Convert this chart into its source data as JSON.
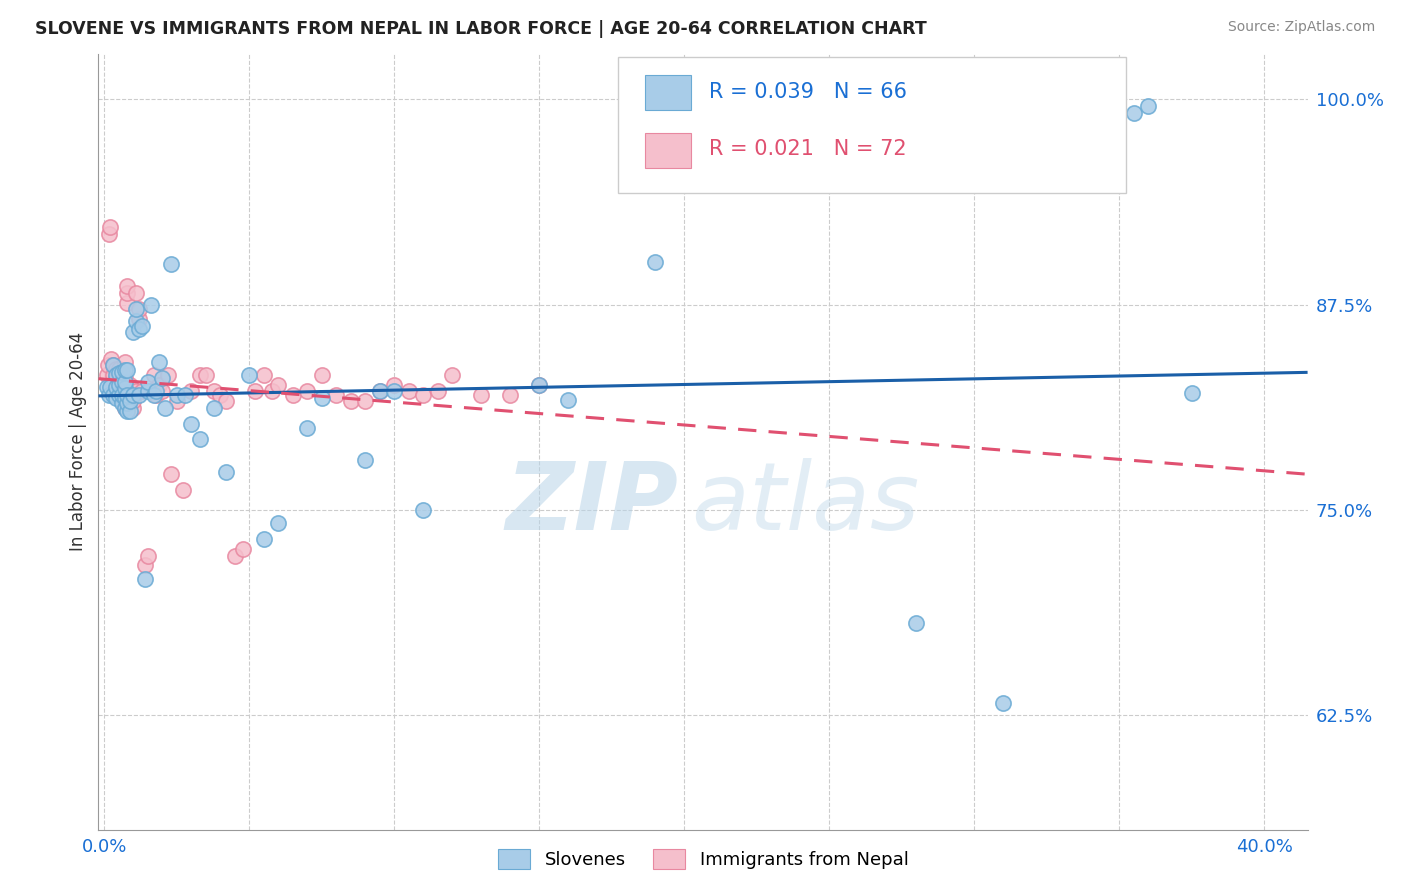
{
  "title": "SLOVENE VS IMMIGRANTS FROM NEPAL IN LABOR FORCE | AGE 20-64 CORRELATION CHART",
  "source": "Source: ZipAtlas.com",
  "ylabel": "In Labor Force | Age 20-64",
  "xmin": -0.002,
  "xmax": 0.415,
  "ymin": 0.555,
  "ymax": 1.028,
  "yticks": [
    0.625,
    0.75,
    0.875,
    1.0
  ],
  "ytick_labels": [
    "62.5%",
    "75.0%",
    "87.5%",
    "100.0%"
  ],
  "xticks": [
    0.0,
    0.05,
    0.1,
    0.15,
    0.2,
    0.25,
    0.3,
    0.35,
    0.4
  ],
  "xtick_labels": [
    "0.0%",
    "",
    "",
    "",
    "",
    "",
    "",
    "",
    "40.0%"
  ],
  "legend_blue_label": "Slovenes",
  "legend_pink_label": "Immigrants from Nepal",
  "R_blue": 0.039,
  "N_blue": 66,
  "R_pink": 0.021,
  "N_pink": 72,
  "blue_color": "#a8cce8",
  "blue_edge_color": "#6aaad4",
  "pink_color": "#f5bfcc",
  "pink_edge_color": "#e888a0",
  "trendline_blue_color": "#1a5fa8",
  "trendline_pink_color": "#e05070",
  "blue_scatter_x": [
    0.0008,
    0.0015,
    0.002,
    0.003,
    0.003,
    0.004,
    0.004,
    0.004,
    0.005,
    0.005,
    0.005,
    0.006,
    0.006,
    0.006,
    0.006,
    0.007,
    0.007,
    0.007,
    0.007,
    0.007,
    0.008,
    0.008,
    0.008,
    0.008,
    0.009,
    0.009,
    0.01,
    0.01,
    0.011,
    0.011,
    0.012,
    0.012,
    0.013,
    0.014,
    0.015,
    0.015,
    0.016,
    0.017,
    0.018,
    0.019,
    0.02,
    0.021,
    0.023,
    0.025,
    0.028,
    0.03,
    0.033,
    0.038,
    0.042,
    0.05,
    0.055,
    0.06,
    0.07,
    0.075,
    0.09,
    0.095,
    0.1,
    0.11,
    0.15,
    0.16,
    0.19,
    0.28,
    0.31,
    0.355,
    0.36,
    0.375
  ],
  "blue_scatter_y": [
    0.825,
    0.82,
    0.825,
    0.82,
    0.838,
    0.818,
    0.825,
    0.832,
    0.82,
    0.826,
    0.833,
    0.815,
    0.82,
    0.828,
    0.834,
    0.812,
    0.818,
    0.824,
    0.828,
    0.835,
    0.81,
    0.815,
    0.82,
    0.835,
    0.81,
    0.816,
    0.82,
    0.858,
    0.865,
    0.872,
    0.82,
    0.86,
    0.862,
    0.708,
    0.822,
    0.828,
    0.875,
    0.82,
    0.822,
    0.84,
    0.83,
    0.812,
    0.9,
    0.82,
    0.82,
    0.802,
    0.793,
    0.812,
    0.773,
    0.832,
    0.732,
    0.742,
    0.8,
    0.818,
    0.78,
    0.822,
    0.822,
    0.75,
    0.826,
    0.817,
    0.901,
    0.681,
    0.632,
    0.992,
    0.996,
    0.821
  ],
  "pink_scatter_x": [
    0.0008,
    0.0012,
    0.0018,
    0.002,
    0.0025,
    0.003,
    0.003,
    0.003,
    0.004,
    0.004,
    0.004,
    0.005,
    0.005,
    0.005,
    0.005,
    0.006,
    0.006,
    0.006,
    0.007,
    0.007,
    0.007,
    0.007,
    0.008,
    0.008,
    0.008,
    0.009,
    0.009,
    0.01,
    0.01,
    0.011,
    0.011,
    0.012,
    0.012,
    0.013,
    0.014,
    0.015,
    0.016,
    0.017,
    0.018,
    0.019,
    0.02,
    0.022,
    0.023,
    0.025,
    0.027,
    0.03,
    0.033,
    0.035,
    0.038,
    0.04,
    0.042,
    0.045,
    0.048,
    0.052,
    0.055,
    0.058,
    0.06,
    0.065,
    0.07,
    0.075,
    0.08,
    0.085,
    0.09,
    0.095,
    0.1,
    0.105,
    0.11,
    0.115,
    0.12,
    0.13,
    0.14,
    0.15
  ],
  "pink_scatter_y": [
    0.832,
    0.838,
    0.918,
    0.922,
    0.842,
    0.826,
    0.832,
    0.838,
    0.822,
    0.83,
    0.836,
    0.82,
    0.826,
    0.832,
    0.836,
    0.817,
    0.822,
    0.83,
    0.812,
    0.82,
    0.83,
    0.84,
    0.876,
    0.882,
    0.886,
    0.822,
    0.826,
    0.812,
    0.816,
    0.822,
    0.882,
    0.866,
    0.872,
    0.822,
    0.716,
    0.722,
    0.822,
    0.832,
    0.82,
    0.826,
    0.822,
    0.832,
    0.772,
    0.816,
    0.762,
    0.822,
    0.832,
    0.832,
    0.822,
    0.82,
    0.816,
    0.722,
    0.726,
    0.822,
    0.832,
    0.822,
    0.826,
    0.82,
    0.822,
    0.832,
    0.82,
    0.816,
    0.816,
    0.822,
    0.826,
    0.822,
    0.82,
    0.822,
    0.832,
    0.82,
    0.82,
    0.826
  ],
  "watermark_line1": "ZIP",
  "watermark_line2": "atlas",
  "background_color": "#ffffff",
  "grid_color": "#cccccc"
}
